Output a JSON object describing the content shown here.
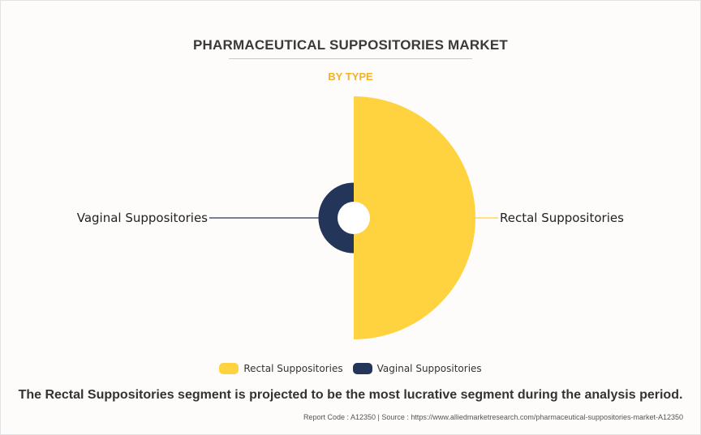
{
  "title": "PHARMACEUTICAL SUPPOSITORIES MARKET",
  "subtitle": "BY TYPE",
  "chart_data": {
    "type": "pie",
    "variant": "rose-semicircle",
    "categories": [
      "Rectal Suppositories",
      "Vaginal Suppositories"
    ],
    "values": [
      77.5,
      22.5
    ],
    "colors": [
      "#ffd23f",
      "#233659"
    ],
    "legend_position": "bottom"
  },
  "legend": [
    {
      "label": "Rectal Suppositories",
      "color": "#ffd23f"
    },
    {
      "label": "Vaginal Suppositories",
      "color": "#233659"
    }
  ],
  "footer": {
    "statement": "The Rectal Suppositories segment is projected to be the most lucrative segment during the analysis period.",
    "source": "Report Code : A12350  |  Source : https://www.alliedmarketresearch.com/pharmaceutical-suppositories-market-A12350"
  }
}
